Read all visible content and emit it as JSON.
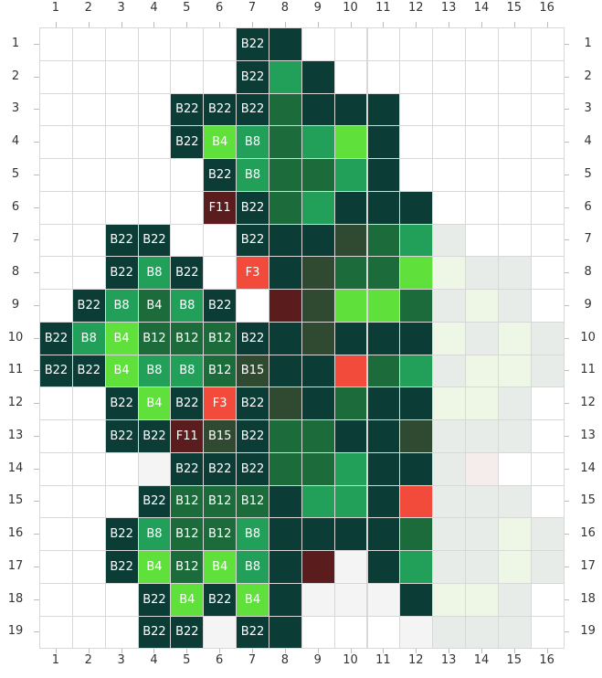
{
  "grid": {
    "columns": [
      "1",
      "2",
      "3",
      "4",
      "5",
      "6",
      "7",
      "8",
      "9",
      "10",
      "11",
      "12",
      "13",
      "14",
      "15",
      "16"
    ],
    "rows": [
      "1",
      "2",
      "3",
      "4",
      "5",
      "6",
      "7",
      "8",
      "9",
      "10",
      "11",
      "12",
      "13",
      "14",
      "15",
      "16",
      "17",
      "18",
      "19"
    ],
    "palette": {
      "_": "#ffffff",
      "D": "#0b3d36",
      "G": "#1c6b3a",
      "M": "#22a05a",
      "L": "#5fe03a",
      "O": "#2f4a30",
      "R": "#f24b3b",
      "X": "#5a1c1c",
      "W": "#f4f4f4",
      "P": "#eef7e6",
      "Q": "#e8ece8",
      "K": "#f5ecec"
    },
    "cells": [
      [
        "__",
        "__",
        "__",
        "__",
        "__",
        "__",
        "D:B22",
        "D",
        "__",
        "__",
        "__",
        "__",
        "__",
        "__",
        "__",
        "__"
      ],
      [
        "__",
        "__",
        "__",
        "__",
        "__",
        "__",
        "D:B22",
        "M",
        "D",
        "__",
        "__",
        "__",
        "__",
        "__",
        "__",
        "__"
      ],
      [
        "__",
        "__",
        "__",
        "__",
        "D:B22",
        "D:B22",
        "D:B22",
        "G",
        "D",
        "D",
        "D",
        "__",
        "__",
        "__",
        "__",
        "__"
      ],
      [
        "__",
        "__",
        "__",
        "__",
        "D:B22",
        "L:B4",
        "M:B8",
        "G",
        "M",
        "L",
        "D",
        "__",
        "__",
        "__",
        "__",
        "__"
      ],
      [
        "__",
        "__",
        "__",
        "__",
        "__",
        "D:B22",
        "M:B8",
        "G",
        "G",
        "M",
        "D",
        "__",
        "__",
        "__",
        "__",
        "__"
      ],
      [
        "__",
        "__",
        "__",
        "__",
        "__",
        "X:F11",
        "D:B22",
        "G",
        "M",
        "D",
        "D",
        "D",
        "__",
        "__",
        "__",
        "__"
      ],
      [
        "__",
        "__",
        "D:B22",
        "D:B22",
        "__",
        "__",
        "D:B22",
        "D",
        "D",
        "O",
        "G",
        "M",
        "Q",
        "__",
        "__",
        "__"
      ],
      [
        "__",
        "__",
        "D:B22",
        "M:B8",
        "D:B22",
        "__",
        "R:F3",
        "D",
        "O",
        "G",
        "G",
        "L",
        "P",
        "Q",
        "Q",
        "__"
      ],
      [
        "__",
        "D:B22",
        "M:B8",
        "G:B4",
        "M:B8",
        "D:B22",
        "__",
        "X",
        "O",
        "L",
        "L",
        "G",
        "Q",
        "P",
        "Q",
        "__"
      ],
      [
        "D:B22",
        "M:B8",
        "L:B4",
        "G:B12",
        "G:B12",
        "G:B12",
        "D:B22",
        "D",
        "O",
        "D",
        "D",
        "D",
        "P",
        "Q",
        "P",
        "Q"
      ],
      [
        "D:B22",
        "D:B22",
        "L:B4",
        "M:B8",
        "M:B8",
        "G:B12",
        "O:B15",
        "D",
        "D",
        "R",
        "G",
        "M",
        "Q",
        "P",
        "P",
        "Q"
      ],
      [
        "__",
        "__",
        "D:B22",
        "L:B4",
        "D:B22",
        "R:F3",
        "D:B22",
        "O",
        "D",
        "G",
        "D",
        "D",
        "P",
        "P",
        "Q",
        "__"
      ],
      [
        "__",
        "__",
        "D:B22",
        "D:B22",
        "X:F11",
        "O:B15",
        "D:B22",
        "G",
        "G",
        "D",
        "D",
        "O",
        "Q",
        "Q",
        "Q",
        "__"
      ],
      [
        "__",
        "__",
        "__",
        "W",
        "D:B22",
        "D:B22",
        "D:B22",
        "G",
        "G",
        "M",
        "D",
        "D",
        "Q",
        "K",
        "__",
        "__"
      ],
      [
        "__",
        "__",
        "__",
        "D:B22",
        "G:B12",
        "G:B12",
        "G:B12",
        "D",
        "M",
        "M",
        "D",
        "R",
        "Q",
        "Q",
        "Q",
        "__"
      ],
      [
        "__",
        "__",
        "D:B22",
        "M:B8",
        "G:B12",
        "G:B12",
        "M:B8",
        "D",
        "D",
        "D",
        "D",
        "G",
        "Q",
        "Q",
        "P",
        "Q"
      ],
      [
        "__",
        "__",
        "D:B22",
        "L:B4",
        "G:B12",
        "L:B4",
        "M:B8",
        "D",
        "X",
        "W",
        "D",
        "M",
        "Q",
        "Q",
        "P",
        "Q"
      ],
      [
        "__",
        "__",
        "__",
        "D:B22",
        "L:B4",
        "D:B22",
        "L:B4",
        "D",
        "W",
        "W",
        "W",
        "D",
        "P",
        "P",
        "Q",
        "__"
      ],
      [
        "__",
        "__",
        "__",
        "D:B22",
        "D:B22",
        "W",
        "D:B22",
        "D",
        "__",
        "__",
        "__",
        "W",
        "Q",
        "Q",
        "Q",
        "__"
      ]
    ]
  }
}
